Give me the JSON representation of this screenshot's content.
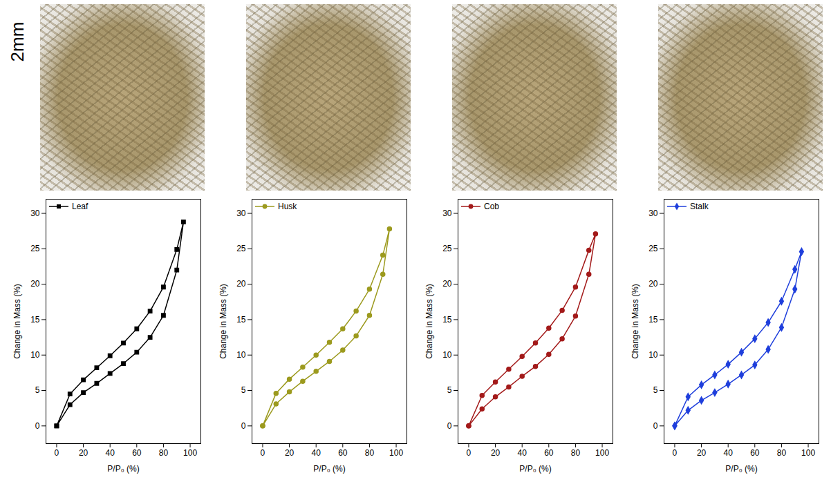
{
  "row_label": "2mm",
  "chart_data": [
    {
      "type": "line",
      "xlabel": "P/P₀ (%)",
      "ylabel": "Change in Mass (%)",
      "xlim": [
        -8,
        108
      ],
      "ylim": [
        -2.5,
        32
      ],
      "xticks": [
        0,
        20,
        40,
        60,
        80,
        100
      ],
      "yticks": [
        0,
        5,
        10,
        15,
        20,
        25,
        30
      ],
      "legend": "top-left",
      "series": [
        {
          "name": "Leaf",
          "color": "#000000",
          "marker": "square",
          "x": [
            0,
            10,
            20,
            30,
            40,
            50,
            60,
            70,
            80,
            90,
            95,
            90,
            80,
            70,
            60,
            50,
            40,
            30,
            20,
            10,
            0
          ],
          "values": [
            0,
            3.0,
            4.7,
            6.0,
            7.4,
            8.8,
            10.4,
            12.5,
            15.6,
            22.0,
            28.8,
            24.9,
            19.6,
            16.2,
            13.7,
            11.7,
            9.9,
            8.2,
            6.5,
            4.5,
            0
          ]
        }
      ]
    },
    {
      "type": "line",
      "xlabel": "P/P₀ (%)",
      "ylabel": "Change in Mass (%)",
      "xlim": [
        -8,
        108
      ],
      "ylim": [
        -2.5,
        32
      ],
      "xticks": [
        0,
        20,
        40,
        60,
        80,
        100
      ],
      "yticks": [
        0,
        5,
        10,
        15,
        20,
        25,
        30
      ],
      "legend": "top-left",
      "series": [
        {
          "name": "Husk",
          "color": "#9c9a1e",
          "marker": "circle",
          "x": [
            0,
            10,
            20,
            30,
            40,
            50,
            60,
            70,
            80,
            90,
            95,
            90,
            80,
            70,
            60,
            50,
            40,
            30,
            20,
            10,
            0
          ],
          "values": [
            0,
            3.1,
            4.8,
            6.3,
            7.7,
            9.1,
            10.7,
            12.7,
            15.6,
            21.4,
            27.8,
            24.1,
            19.3,
            16.2,
            13.7,
            11.8,
            10.0,
            8.3,
            6.6,
            4.6,
            0
          ]
        }
      ]
    },
    {
      "type": "line",
      "xlabel": "P/P₀ (%)",
      "ylabel": "Change in Mass (%)",
      "xlim": [
        -8,
        108
      ],
      "ylim": [
        -2.5,
        32
      ],
      "xticks": [
        0,
        20,
        40,
        60,
        80,
        100
      ],
      "yticks": [
        0,
        5,
        10,
        15,
        20,
        25,
        30
      ],
      "legend": "top-left",
      "series": [
        {
          "name": "Cob",
          "color": "#a31a1a",
          "marker": "circle",
          "x": [
            0,
            10,
            20,
            30,
            40,
            50,
            60,
            70,
            80,
            90,
            95,
            90,
            80,
            70,
            60,
            50,
            40,
            30,
            20,
            10,
            0
          ],
          "values": [
            0,
            2.4,
            4.1,
            5.5,
            7.0,
            8.4,
            10.1,
            12.3,
            15.5,
            21.4,
            27.1,
            24.8,
            19.6,
            16.3,
            13.8,
            11.7,
            9.8,
            8.0,
            6.2,
            4.3,
            0
          ]
        }
      ]
    },
    {
      "type": "line",
      "xlabel": "P/P₀ (%)",
      "ylabel": "Change in Mass (%)",
      "xlim": [
        -8,
        108
      ],
      "ylim": [
        -2.5,
        32
      ],
      "xticks": [
        0,
        20,
        40,
        60,
        80,
        100
      ],
      "yticks": [
        0,
        5,
        10,
        15,
        20,
        25,
        30
      ],
      "legend": "top-left",
      "series": [
        {
          "name": "Stalk",
          "color": "#1f3fdc",
          "marker": "diamond",
          "x": [
            0,
            10,
            20,
            30,
            40,
            50,
            60,
            70,
            80,
            90,
            95,
            90,
            80,
            70,
            60,
            50,
            40,
            30,
            20,
            10,
            0
          ],
          "values": [
            0,
            2.2,
            3.6,
            4.7,
            5.9,
            7.2,
            8.6,
            10.8,
            13.9,
            19.3,
            24.6,
            22.1,
            17.6,
            14.6,
            12.3,
            10.4,
            8.7,
            7.2,
            5.8,
            4.1,
            0
          ]
        }
      ]
    }
  ]
}
